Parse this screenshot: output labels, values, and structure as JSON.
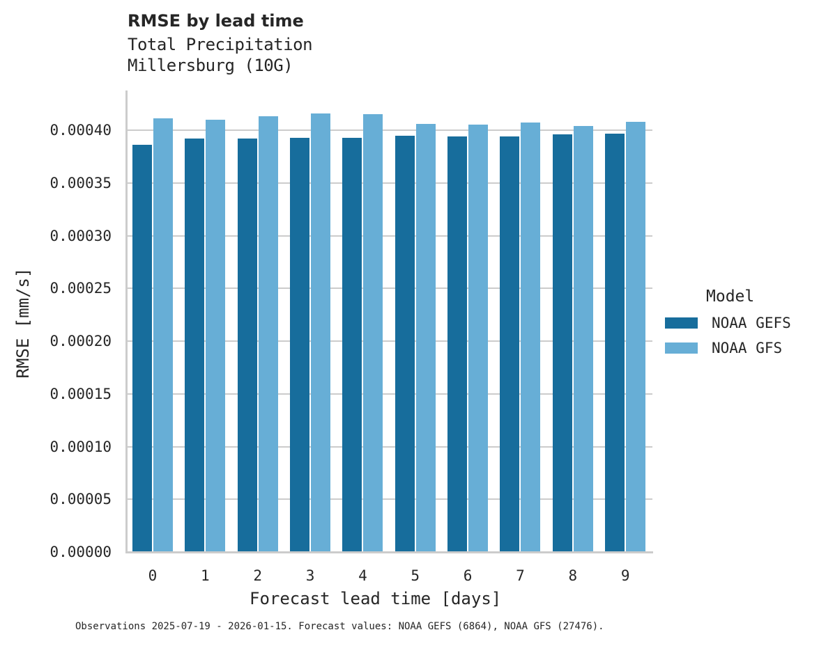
{
  "chart_data": {
    "type": "bar",
    "title": "RMSE by lead time",
    "subtitle": [
      "Total Precipitation",
      "Millersburg (10G)"
    ],
    "xlabel": "Forecast lead time [days]",
    "ylabel": "RMSE [mm/s]",
    "categories": [
      "0",
      "1",
      "2",
      "3",
      "4",
      "5",
      "6",
      "7",
      "8",
      "9"
    ],
    "series": [
      {
        "name": "NOAA GEFS",
        "color": "#176d9c",
        "values": [
          0.000386,
          0.000392,
          0.000392,
          0.000393,
          0.000393,
          0.000395,
          0.000394,
          0.000394,
          0.000396,
          0.000397
        ]
      },
      {
        "name": "NOAA GFS",
        "color": "#67aed6",
        "values": [
          0.000411,
          0.00041,
          0.000413,
          0.000416,
          0.000415,
          0.000406,
          0.000405,
          0.000407,
          0.000404,
          0.000408
        ]
      }
    ],
    "yticks": [
      "0.00000",
      "0.00005",
      "0.00010",
      "0.00015",
      "0.00020",
      "0.00025",
      "0.00030",
      "0.00035",
      "0.00040"
    ],
    "ylim": [
      0,
      0.000438
    ],
    "grid": "horizontal",
    "legend": {
      "title": "Model",
      "position": "right"
    },
    "footnote": "Observations 2025-07-19 - 2026-01-15. Forecast values: NOAA GEFS (6864), NOAA GFS (27476)."
  }
}
